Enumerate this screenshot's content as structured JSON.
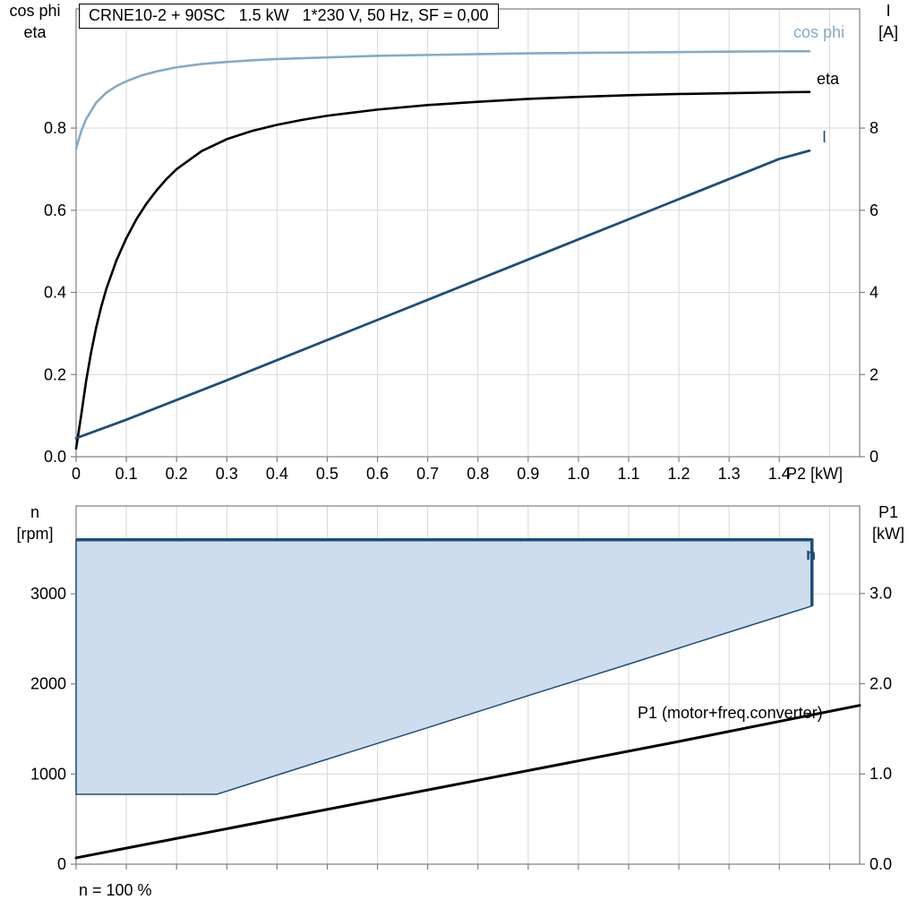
{
  "colors": {
    "cos_phi": "#85aac7",
    "eta": "#000000",
    "current": "#1d4e79",
    "envelope_fill": "#cedded",
    "envelope_stroke": "#1d4e79",
    "p1_line": "#000000",
    "grid": "#d8d8d8",
    "frame": "#7f7f7f",
    "text": "#000000"
  },
  "chart_data": [
    {
      "type": "line",
      "title": "CRNE10-2 + 90SC   1.5 kW   1*230 V, 50 Hz, SF = 0,00",
      "x_axis": {
        "label": "P2 [kW]",
        "min": 0,
        "max": 1.56,
        "ticks": [
          "0",
          "0.1",
          "0.2",
          "0.3",
          "0.4",
          "0.5",
          "0.6",
          "0.7",
          "0.8",
          "0.9",
          "1.0",
          "1.1",
          "1.2",
          "1.3",
          "1.4"
        ],
        "grid": [
          0.1,
          0.2,
          0.3,
          0.4,
          0.5,
          0.6,
          0.7,
          0.8,
          0.9,
          1.0,
          1.1,
          1.2,
          1.3,
          1.4,
          1.5
        ]
      },
      "y_axis_left": {
        "titles": [
          "cos phi",
          "eta"
        ],
        "min": 0,
        "max": 1.09,
        "ticks": [
          "0.0",
          "0.2",
          "0.4",
          "0.6",
          "0.8"
        ]
      },
      "y_axis_right": {
        "titles": [
          "I",
          "[A]"
        ],
        "min": 0,
        "max": 10.9,
        "ticks": [
          "0",
          "2",
          "4",
          "6",
          "8"
        ]
      },
      "series": [
        {
          "name": "cos phi",
          "axis": "left",
          "color_key": "cos_phi",
          "width": 2.6,
          "points": [
            [
              0,
              0.75
            ],
            [
              0.01,
              0.792
            ],
            [
              0.02,
              0.822
            ],
            [
              0.04,
              0.862
            ],
            [
              0.06,
              0.886
            ],
            [
              0.08,
              0.902
            ],
            [
              0.1,
              0.914
            ],
            [
              0.13,
              0.928
            ],
            [
              0.16,
              0.938
            ],
            [
              0.2,
              0.948
            ],
            [
              0.25,
              0.956
            ],
            [
              0.3,
              0.961
            ],
            [
              0.35,
              0.965
            ],
            [
              0.4,
              0.968
            ],
            [
              0.5,
              0.972
            ],
            [
              0.6,
              0.976
            ],
            [
              0.7,
              0.978
            ],
            [
              0.8,
              0.98
            ],
            [
              0.9,
              0.982
            ],
            [
              1.0,
              0.983
            ],
            [
              1.1,
              0.984
            ],
            [
              1.2,
              0.985
            ],
            [
              1.3,
              0.986
            ],
            [
              1.4,
              0.987
            ],
            [
              1.46,
              0.987
            ]
          ]
        },
        {
          "name": "eta",
          "axis": "left",
          "color_key": "eta",
          "width": 2.6,
          "points": [
            [
              0,
              0.02
            ],
            [
              0.01,
              0.1
            ],
            [
              0.02,
              0.185
            ],
            [
              0.03,
              0.255
            ],
            [
              0.04,
              0.315
            ],
            [
              0.05,
              0.365
            ],
            [
              0.06,
              0.408
            ],
            [
              0.08,
              0.477
            ],
            [
              0.1,
              0.532
            ],
            [
              0.12,
              0.578
            ],
            [
              0.14,
              0.616
            ],
            [
              0.16,
              0.648
            ],
            [
              0.18,
              0.676
            ],
            [
              0.2,
              0.7
            ],
            [
              0.25,
              0.744
            ],
            [
              0.3,
              0.773
            ],
            [
              0.35,
              0.793
            ],
            [
              0.4,
              0.808
            ],
            [
              0.45,
              0.82
            ],
            [
              0.5,
              0.83
            ],
            [
              0.6,
              0.845
            ],
            [
              0.7,
              0.856
            ],
            [
              0.8,
              0.864
            ],
            [
              0.9,
              0.871
            ],
            [
              1.0,
              0.876
            ],
            [
              1.1,
              0.88
            ],
            [
              1.2,
              0.883
            ],
            [
              1.3,
              0.885
            ],
            [
              1.4,
              0.887
            ],
            [
              1.46,
              0.888
            ]
          ]
        },
        {
          "name": "I",
          "axis": "right",
          "color_key": "current",
          "width": 2.8,
          "points": [
            [
              0,
              0.45
            ],
            [
              0.1,
              0.9
            ],
            [
              0.2,
              1.38
            ],
            [
              0.3,
              1.86
            ],
            [
              0.4,
              2.35
            ],
            [
              0.5,
              2.84
            ],
            [
              0.6,
              3.33
            ],
            [
              0.7,
              3.82
            ],
            [
              0.8,
              4.31
            ],
            [
              0.9,
              4.8
            ],
            [
              1.0,
              5.29
            ],
            [
              1.1,
              5.78
            ],
            [
              1.2,
              6.27
            ],
            [
              1.3,
              6.76
            ],
            [
              1.4,
              7.25
            ],
            [
              1.46,
              7.45
            ]
          ]
        }
      ]
    },
    {
      "type": "area-line",
      "x_axis": {
        "label": "",
        "min": 0,
        "max": 1.56,
        "ticks": [],
        "grid": [
          0.1,
          0.2,
          0.3,
          0.4,
          0.5,
          0.6,
          0.7,
          0.8,
          0.9,
          1.0,
          1.1,
          1.2,
          1.3,
          1.4,
          1.5
        ],
        "tick_marks_only": [
          0,
          0.1,
          0.2,
          0.3,
          0.4,
          0.5,
          0.6,
          0.7,
          0.8,
          0.9,
          1.0,
          1.1,
          1.2,
          1.3,
          1.4,
          1.5
        ]
      },
      "y_axis_left": {
        "titles": [
          "n",
          "[rpm]"
        ],
        "min": 0,
        "max": 3975,
        "ticks": [
          "0",
          "1000",
          "2000",
          "3000"
        ]
      },
      "y_axis_right": {
        "titles": [
          "P1",
          "[kW]"
        ],
        "min": 0,
        "max": 3.97,
        "ticks": [
          "0.0",
          "1.0",
          "2.0",
          "3.0"
        ]
      },
      "envelope": {
        "name": "n",
        "axis": "left",
        "polygon": [
          [
            0,
            3600
          ],
          [
            1.465,
            3600
          ],
          [
            1.465,
            2865
          ],
          [
            1.3,
            2575
          ],
          [
            1.1,
            2220
          ],
          [
            0.9,
            1870
          ],
          [
            0.7,
            1515
          ],
          [
            0.5,
            1165
          ],
          [
            0.28,
            775
          ],
          [
            0,
            775
          ]
        ]
      },
      "series": [
        {
          "name": "P1 (motor+freq.converter)",
          "axis": "right",
          "color_key": "p1_line",
          "width": 3,
          "points": [
            [
              0,
              0.07
            ],
            [
              0.4,
              0.5
            ],
            [
              0.8,
              0.93
            ],
            [
              1.2,
              1.36
            ],
            [
              1.56,
              1.76
            ]
          ]
        }
      ],
      "footnote": "n = 100 %"
    }
  ]
}
